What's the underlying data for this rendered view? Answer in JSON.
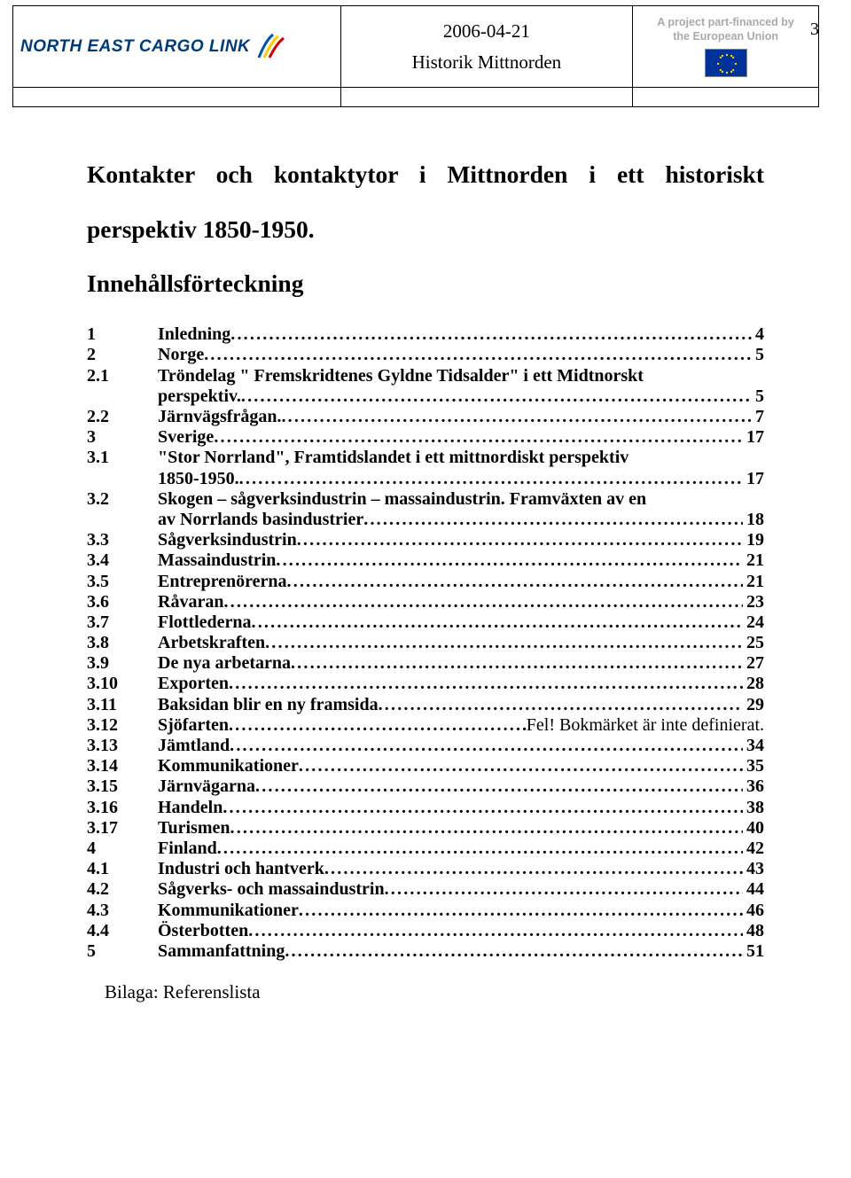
{
  "header": {
    "logo_text": "NORTH EAST CARGO LINK",
    "date": "2006-04-21",
    "subtitle": "Historik Mittnorden",
    "eu_line1": "A project part-financed by",
    "eu_line2": "the European Union",
    "page_number": "3"
  },
  "title_line1": "Kontakter och kontaktytor i Mittnorden i ett historiskt",
  "title_line2": "perspektiv 1850-1950.",
  "toc_heading": "Innehållsförteckning",
  "toc": [
    {
      "num": "1",
      "text": "Inledning",
      "page": "4",
      "bold": true
    },
    {
      "num": "2",
      "text": "Norge",
      "page": "5",
      "bold": true
    },
    {
      "num": "2.1",
      "text": "Tröndelag \" Fremskridtenes Gyldne Tidsalder\" i ett Midtnorskt",
      "cont": "perspektiv.",
      "page": "5",
      "bold": true
    },
    {
      "num": "2.2",
      "text": "Järnvägsfrågan.",
      "page": "7",
      "bold": true
    },
    {
      "num": "3",
      "text": "Sverige",
      "page": "17",
      "bold": true
    },
    {
      "num": "3.1",
      "text": "\"Stor Norrland\", Framtidslandet i ett mittnordiskt perspektiv",
      "cont": "1850-1950.",
      "page": "17",
      "bold": true
    },
    {
      "num": "3.2",
      "text": "Skogen – sågverksindustrin – massaindustrin. Framväxten av en",
      "cont": "av Norrlands basindustrier",
      "page": "18",
      "bold": true
    },
    {
      "num": "3.3",
      "text": "Sågverksindustrin",
      "page": "19",
      "bold": true
    },
    {
      "num": "3.4",
      "text": "Massaindustrin",
      "page": "21",
      "bold": true
    },
    {
      "num": "3.5",
      "text": "Entreprenörerna",
      "page": "21",
      "bold": true
    },
    {
      "num": "3.6",
      "text": "Råvaran",
      "page": "23",
      "bold": true
    },
    {
      "num": "3.7",
      "text": "Flottlederna",
      "page": "24",
      "bold": true
    },
    {
      "num": "3.8",
      "text": "Arbetskraften",
      "page": "25",
      "bold": true
    },
    {
      "num": "3.9",
      "text": "De nya arbetarna",
      "page": "27",
      "bold": true
    },
    {
      "num": "3.10",
      "text": "Exporten",
      "page": "28",
      "bold": true
    },
    {
      "num": "3.11",
      "text": "Baksidan blir en ny framsida",
      "page": "29",
      "bold": true
    },
    {
      "num": "3.12",
      "text": "Sjöfarten",
      "suffix": " Fel! Bokmärket är inte definierat.",
      "bold": true,
      "suffix_bold": false,
      "nopg": true
    },
    {
      "num": "3.13",
      "text": "Jämtland",
      "page": "34",
      "bold": true
    },
    {
      "num": "3.14",
      "text": "Kommunikationer",
      "page": "35",
      "bold": true
    },
    {
      "num": "3.15",
      "text": "Järnvägarna",
      "page": "36",
      "bold": true
    },
    {
      "num": "3.16",
      "text": "Handeln",
      "page": "38",
      "bold": true
    },
    {
      "num": "3.17",
      "text": "Turismen",
      "page": "40",
      "bold": true
    },
    {
      "num": "4",
      "text": "Finland",
      "page": "42",
      "bold": true
    },
    {
      "num": "4.1",
      "text": "Industri och hantverk",
      "page": "43",
      "bold": true
    },
    {
      "num": "4.2",
      "text": "Sågverks- och massaindustrin",
      "page": "44",
      "bold": true
    },
    {
      "num": "4.3",
      "text": "Kommunikationer",
      "page": "46",
      "bold": true
    },
    {
      "num": "4.4",
      "text": "Österbotten",
      "page": "48",
      "bold": true
    },
    {
      "num": "5",
      "text": "Sammanfattning",
      "page": "51",
      "bold": true
    }
  ],
  "appendix": "Bilaga: Referenslista"
}
